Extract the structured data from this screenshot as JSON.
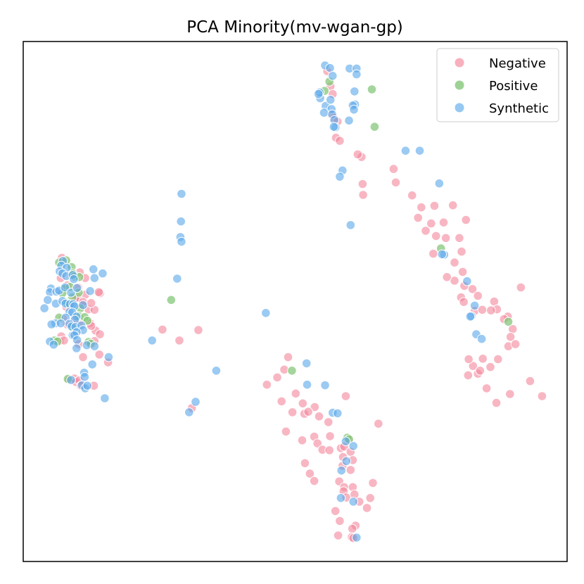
{
  "chart_data": {
    "type": "scatter",
    "title": "PCA Minority(mv-wgan-gp)",
    "xlabel": "",
    "ylabel": "",
    "xlim": [
      0,
      100
    ],
    "ylim": [
      0,
      100
    ],
    "axes_ticks": false,
    "grid": false,
    "legend": {
      "position": "top-right"
    },
    "series": [
      {
        "name": "Negative",
        "color": "#f4869b",
        "points": [
          [
            55.9,
            94.3
          ],
          [
            56.5,
            91.4
          ],
          [
            56.9,
            89.9
          ],
          [
            56.6,
            86.0
          ],
          [
            57.1,
            85.3
          ],
          [
            57.8,
            84.6
          ],
          [
            57.5,
            81.5
          ],
          [
            58.2,
            80.9
          ],
          [
            62.2,
            77.8
          ],
          [
            61.5,
            78.3
          ],
          [
            68.1,
            75.5
          ],
          [
            68.5,
            72.9
          ],
          [
            62.4,
            72.6
          ],
          [
            62.5,
            70.5
          ],
          [
            71.5,
            70.4
          ],
          [
            73.2,
            68.1
          ],
          [
            75.6,
            68.4
          ],
          [
            79.0,
            68.5
          ],
          [
            72.6,
            66.1
          ],
          [
            75.0,
            65.0
          ],
          [
            77.3,
            65.2
          ],
          [
            81.4,
            65.7
          ],
          [
            74.0,
            63.6
          ],
          [
            75.9,
            62.6
          ],
          [
            77.7,
            62.2
          ],
          [
            80.2,
            62.2
          ],
          [
            80.6,
            59.6
          ],
          [
            75.4,
            59.2
          ],
          [
            79.3,
            57.5
          ],
          [
            80.8,
            55.7
          ],
          [
            79.3,
            54.0
          ],
          [
            77.9,
            54.7
          ],
          [
            81.1,
            53.0
          ],
          [
            82.6,
            52.4
          ],
          [
            80.5,
            50.8
          ],
          [
            83.6,
            51.1
          ],
          [
            81.0,
            49.9
          ],
          [
            83.0,
            48.2
          ],
          [
            84.4,
            48.4
          ],
          [
            86.6,
            50.0
          ],
          [
            87.1,
            48.5
          ],
          [
            89.1,
            47.1
          ],
          [
            88.4,
            46.6
          ],
          [
            86.0,
            48.3
          ],
          [
            90.0,
            44.7
          ],
          [
            89.6,
            43.2
          ],
          [
            89.2,
            41.4
          ],
          [
            90.5,
            41.8
          ],
          [
            91.5,
            52.7
          ],
          [
            84.5,
            39.0
          ],
          [
            82.7,
            37.6
          ],
          [
            85.9,
            37.4
          ],
          [
            83.6,
            36.1
          ],
          [
            81.9,
            38.9
          ],
          [
            84.0,
            36.7
          ],
          [
            87.3,
            38.9
          ],
          [
            81.8,
            35.8
          ],
          [
            93.2,
            34.7
          ],
          [
            85.2,
            33.3
          ],
          [
            89.5,
            32.2
          ],
          [
            95.4,
            31.8
          ],
          [
            87.0,
            30.5
          ],
          [
            7.1,
            58.4
          ],
          [
            6.9,
            54.5
          ],
          [
            8.1,
            53.1
          ],
          [
            8.8,
            55.2
          ],
          [
            10.4,
            55.6
          ],
          [
            11.4,
            54.5
          ],
          [
            10.1,
            52.7
          ],
          [
            11.4,
            51.3
          ],
          [
            10.0,
            50.8
          ],
          [
            7.9,
            49.0
          ],
          [
            9.6,
            50.6
          ],
          [
            10.8,
            49.3
          ],
          [
            12.0,
            48.5
          ],
          [
            11.0,
            49.9
          ],
          [
            13.1,
            48.4
          ],
          [
            12.5,
            49.7
          ],
          [
            14.1,
            51.6
          ],
          [
            13.9,
            51.8
          ],
          [
            7.3,
            46.7
          ],
          [
            8.1,
            45.6
          ],
          [
            9.6,
            46.5
          ],
          [
            10.5,
            46.1
          ],
          [
            12.3,
            45.8
          ],
          [
            13.3,
            44.4
          ],
          [
            12.5,
            45.3
          ],
          [
            14.1,
            43.7
          ],
          [
            7.0,
            43.3
          ],
          [
            6.7,
            42.4
          ],
          [
            7.5,
            42.5
          ],
          [
            12.6,
            41.8
          ],
          [
            13.1,
            42.4
          ],
          [
            10.2,
            41.8
          ],
          [
            11.0,
            39.3
          ],
          [
            14.0,
            39.8
          ],
          [
            15.6,
            38.3
          ],
          [
            8.4,
            35.0
          ],
          [
            9.4,
            35.2
          ],
          [
            9.7,
            34.5
          ],
          [
            10.3,
            34.8
          ],
          [
            10.6,
            33.8
          ],
          [
            13.0,
            33.8
          ],
          [
            25.6,
            44.6
          ],
          [
            28.7,
            42.5
          ],
          [
            32.2,
            44.5
          ],
          [
            31.0,
            29.5
          ],
          [
            48.7,
            39.3
          ],
          [
            48.0,
            36.9
          ],
          [
            46.7,
            35.4
          ],
          [
            44.8,
            34.0
          ],
          [
            47.5,
            30.8
          ],
          [
            50.1,
            32.3
          ],
          [
            51.4,
            30.4
          ],
          [
            53.6,
            29.7
          ],
          [
            49.5,
            28.7
          ],
          [
            51.7,
            28.4
          ],
          [
            52.4,
            28.8
          ],
          [
            54.4,
            27.9
          ],
          [
            56.1,
            26.8
          ],
          [
            59.3,
            31.8
          ],
          [
            65.3,
            26.5
          ],
          [
            48.3,
            25.0
          ],
          [
            53.5,
            24.0
          ],
          [
            56.4,
            24.1
          ],
          [
            51.3,
            23.3
          ],
          [
            54.1,
            22.7
          ],
          [
            55.0,
            21.5
          ],
          [
            56.3,
            21.4
          ],
          [
            58.4,
            21.8
          ],
          [
            59.9,
            23.4
          ],
          [
            59.0,
            22.1
          ],
          [
            60.2,
            21.1
          ],
          [
            58.8,
            20.1
          ],
          [
            60.6,
            19.5
          ],
          [
            51.8,
            18.9
          ],
          [
            52.7,
            16.9
          ],
          [
            58.7,
            18.4
          ],
          [
            60.2,
            17.6
          ],
          [
            53.5,
            15.5
          ],
          [
            58.1,
            15.4
          ],
          [
            59.0,
            14.3
          ],
          [
            60.6,
            14.3
          ],
          [
            58.9,
            13.5
          ],
          [
            59.4,
            12.3
          ],
          [
            61.8,
            11.5
          ],
          [
            64.3,
            15.1
          ],
          [
            63.8,
            12.2
          ],
          [
            60.9,
            12.9
          ],
          [
            63.2,
            10.3
          ],
          [
            57.4,
            9.7
          ],
          [
            58.2,
            7.8
          ],
          [
            61.1,
            6.9
          ],
          [
            60.5,
            6.3
          ],
          [
            57.9,
            5.0
          ],
          [
            60.4,
            4.7
          ],
          [
            60.7,
            4.5
          ]
        ]
      },
      {
        "name": "Positive",
        "color": "#86c77b",
        "points": [
          [
            56.3,
            92.3
          ],
          [
            55.4,
            90.5
          ],
          [
            64.1,
            90.8
          ],
          [
            64.6,
            83.6
          ],
          [
            6.6,
            57.5
          ],
          [
            7.9,
            57.9
          ],
          [
            8.9,
            56.6
          ],
          [
            9.1,
            55.4
          ],
          [
            9.4,
            54.8
          ],
          [
            10.3,
            54.7
          ],
          [
            7.6,
            52.4
          ],
          [
            8.6,
            52.8
          ],
          [
            10.2,
            51.7
          ],
          [
            7.2,
            51.6
          ],
          [
            9.0,
            50.8
          ],
          [
            7.9,
            49.8
          ],
          [
            10.5,
            48.7
          ],
          [
            8.2,
            49.6
          ],
          [
            6.6,
            46.9
          ],
          [
            10.2,
            47.2
          ],
          [
            11.3,
            47.0
          ],
          [
            9.1,
            45.1
          ],
          [
            11.8,
            46.3
          ],
          [
            5.7,
            42.5
          ],
          [
            6.3,
            42.3
          ],
          [
            12.0,
            42.2
          ],
          [
            12.4,
            41.9
          ],
          [
            8.2,
            35.1
          ],
          [
            27.2,
            50.3
          ],
          [
            49.4,
            36.7
          ],
          [
            59.6,
            23.8
          ],
          [
            59.9,
            23.5
          ],
          [
            76.8,
            60.2
          ],
          [
            89.2,
            46.1
          ]
        ]
      },
      {
        "name": "Synthetic",
        "color": "#5eaaea",
        "points": [
          [
            55.5,
            95.4
          ],
          [
            56.4,
            94.9
          ],
          [
            60.0,
            94.8
          ],
          [
            61.3,
            94.8
          ],
          [
            61.3,
            93.7
          ],
          [
            56.9,
            93.4
          ],
          [
            54.6,
            89.1
          ],
          [
            54.5,
            90.2
          ],
          [
            60.9,
            90.4
          ],
          [
            54.3,
            89.9
          ],
          [
            55.6,
            87.6
          ],
          [
            56.5,
            88.8
          ],
          [
            56.7,
            87.0
          ],
          [
            61.0,
            87.9
          ],
          [
            60.6,
            87.7
          ],
          [
            60.8,
            86.9
          ],
          [
            55.3,
            86.3
          ],
          [
            56.8,
            86.0
          ],
          [
            57.2,
            84.9
          ],
          [
            59.9,
            84.8
          ],
          [
            57.4,
            83.5
          ],
          [
            57.1,
            83.6
          ],
          [
            70.3,
            79.0
          ],
          [
            72.9,
            79.0
          ],
          [
            58.7,
            75.2
          ],
          [
            58.2,
            74.0
          ],
          [
            76.5,
            72.7
          ],
          [
            60.2,
            64.7
          ],
          [
            29.1,
            70.7
          ],
          [
            29.0,
            65.4
          ],
          [
            28.9,
            62.4
          ],
          [
            29.1,
            61.5
          ],
          [
            28.3,
            54.4
          ],
          [
            77.4,
            59.0
          ],
          [
            77.0,
            59.1
          ],
          [
            81.6,
            53.9
          ],
          [
            83.0,
            49.2
          ],
          [
            82.4,
            47.2
          ],
          [
            82.2,
            47.1
          ],
          [
            83.3,
            43.7
          ],
          [
            84.3,
            42.8
          ],
          [
            7.3,
            57.8
          ],
          [
            7.0,
            56.9
          ],
          [
            8.0,
            56.5
          ],
          [
            6.7,
            55.8
          ],
          [
            7.2,
            55.4
          ],
          [
            7.9,
            54.9
          ],
          [
            9.1,
            55.1
          ],
          [
            9.3,
            54.3
          ],
          [
            12.9,
            56.2
          ],
          [
            14.6,
            55.4
          ],
          [
            13.1,
            54.5
          ],
          [
            5.1,
            52.5
          ],
          [
            4.9,
            51.8
          ],
          [
            6.1,
            51.9
          ],
          [
            6.6,
            52.1
          ],
          [
            7.7,
            52.7
          ],
          [
            8.8,
            51.7
          ],
          [
            9.9,
            52.6
          ],
          [
            12.3,
            52.0
          ],
          [
            4.5,
            50.3
          ],
          [
            6.0,
            49.6
          ],
          [
            7.2,
            50.1
          ],
          [
            7.8,
            49.6
          ],
          [
            8.6,
            49.5
          ],
          [
            9.2,
            49.5
          ],
          [
            9.4,
            49.1
          ],
          [
            11.0,
            49.3
          ],
          [
            3.9,
            48.7
          ],
          [
            8.5,
            48.0
          ],
          [
            9.0,
            47.9
          ],
          [
            9.8,
            47.1
          ],
          [
            7.8,
            46.9
          ],
          [
            9.5,
            46.5
          ],
          [
            5.9,
            45.8
          ],
          [
            5.2,
            45.6
          ],
          [
            6.9,
            45.8
          ],
          [
            8.5,
            45.7
          ],
          [
            8.9,
            45.2
          ],
          [
            9.6,
            45.1
          ],
          [
            10.7,
            45.4
          ],
          [
            11.0,
            44.5
          ],
          [
            9.1,
            43.5
          ],
          [
            9.8,
            44.1
          ],
          [
            9.4,
            43.5
          ],
          [
            9.9,
            42.6
          ],
          [
            4.9,
            42.3
          ],
          [
            11.7,
            41.6
          ],
          [
            13.1,
            41.4
          ],
          [
            5.6,
            41.7
          ],
          [
            9.8,
            41.0
          ],
          [
            12.7,
            37.9
          ],
          [
            15.7,
            39.3
          ],
          [
            11.2,
            36.3
          ],
          [
            11.3,
            35.5
          ],
          [
            8.8,
            34.9
          ],
          [
            10.8,
            33.9
          ],
          [
            11.4,
            33.3
          ],
          [
            11.8,
            33.8
          ],
          [
            15.0,
            31.4
          ],
          [
            44.6,
            47.8
          ],
          [
            23.7,
            42.5
          ],
          [
            35.5,
            36.7
          ],
          [
            52.1,
            38.1
          ],
          [
            52.2,
            34.0
          ],
          [
            55.5,
            33.9
          ],
          [
            31.7,
            30.7
          ],
          [
            30.5,
            28.7
          ],
          [
            56.9,
            28.6
          ],
          [
            57.8,
            28.5
          ],
          [
            59.3,
            23.1
          ],
          [
            60.7,
            22.2
          ],
          [
            59.4,
            19.3
          ],
          [
            58.5,
            17.5
          ],
          [
            58.4,
            12.2
          ],
          [
            60.7,
            11.5
          ],
          [
            61.3,
            4.6
          ]
        ]
      }
    ]
  }
}
